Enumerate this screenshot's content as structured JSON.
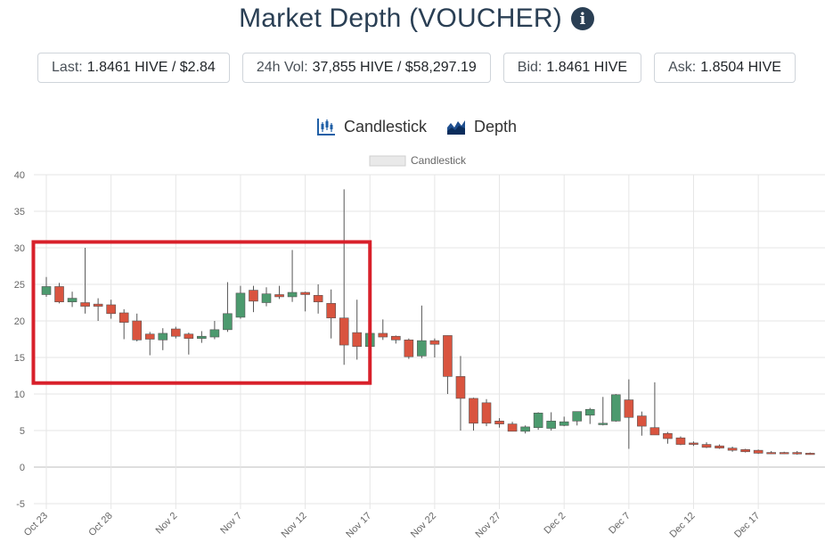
{
  "header": {
    "title": "Market Depth (VOUCHER)",
    "info_icon": "info-icon"
  },
  "stats": [
    {
      "label": "Last:",
      "value": "1.8461 HIVE / $2.84"
    },
    {
      "label": "24h Vol:",
      "value": "37,855 HIVE / $58,297.19"
    },
    {
      "label": "Bid:",
      "value": "1.8461 HIVE"
    },
    {
      "label": "Ask:",
      "value": "1.8504 HIVE"
    }
  ],
  "chart_tabs": [
    {
      "label": "Candlestick",
      "icon": "candlestick-icon"
    },
    {
      "label": "Depth",
      "icon": "depth-chart-icon"
    }
  ],
  "colors": {
    "title": "#2a3f54",
    "up": "#4c9a6e",
    "down": "#d9543f",
    "wick": "#555555",
    "highlight": "#d8202a",
    "grid": "#e6e6e6"
  },
  "chart_data": {
    "type": "candlestick",
    "legend": "Candlestick",
    "ylim": [
      -5,
      40
    ],
    "yticks": [
      -5,
      0,
      5,
      10,
      15,
      20,
      25,
      30,
      35,
      40
    ],
    "xticks": [
      "Oct 23",
      "Oct 28",
      "Nov 2",
      "Nov 7",
      "Nov 12",
      "Nov 17",
      "Nov 22",
      "Nov 27",
      "Dec 2",
      "Dec 7",
      "Dec 12",
      "Dec 17"
    ],
    "xtick_every": 5,
    "grid": true,
    "highlight_region": {
      "day_start": -1,
      "day_end": 25,
      "y_low": 11.5,
      "y_high": 30.8
    },
    "candles": [
      {
        "day": 0,
        "open": 23.6,
        "high": 26.0,
        "low": 23.3,
        "close": 24.7
      },
      {
        "day": 1,
        "open": 24.7,
        "high": 25.2,
        "low": 22.4,
        "close": 22.6
      },
      {
        "day": 2,
        "open": 22.6,
        "high": 24.0,
        "low": 21.9,
        "close": 23.1
      },
      {
        "day": 3,
        "open": 22.5,
        "high": 30.0,
        "low": 21.0,
        "close": 22.0
      },
      {
        "day": 4,
        "open": 22.3,
        "high": 23.1,
        "low": 20.0,
        "close": 22.0
      },
      {
        "day": 5,
        "open": 22.2,
        "high": 22.9,
        "low": 20.3,
        "close": 21.0
      },
      {
        "day": 6,
        "open": 21.1,
        "high": 21.6,
        "low": 17.5,
        "close": 19.8
      },
      {
        "day": 7,
        "open": 20.0,
        "high": 21.0,
        "low": 17.2,
        "close": 17.4
      },
      {
        "day": 8,
        "open": 18.2,
        "high": 18.5,
        "low": 15.3,
        "close": 17.5
      },
      {
        "day": 9,
        "open": 17.4,
        "high": 19.0,
        "low": 16.0,
        "close": 18.3
      },
      {
        "day": 10,
        "open": 18.9,
        "high": 19.2,
        "low": 17.6,
        "close": 17.9
      },
      {
        "day": 11,
        "open": 18.2,
        "high": 18.4,
        "low": 15.4,
        "close": 17.6
      },
      {
        "day": 12,
        "open": 17.6,
        "high": 18.6,
        "low": 17.0,
        "close": 17.9
      },
      {
        "day": 13,
        "open": 17.8,
        "high": 20.0,
        "low": 17.5,
        "close": 18.8
      },
      {
        "day": 14,
        "open": 18.8,
        "high": 25.3,
        "low": 18.5,
        "close": 21.0
      },
      {
        "day": 15,
        "open": 20.5,
        "high": 24.8,
        "low": 20.3,
        "close": 23.8
      },
      {
        "day": 16,
        "open": 24.2,
        "high": 24.8,
        "low": 21.2,
        "close": 22.7
      },
      {
        "day": 17,
        "open": 22.5,
        "high": 24.6,
        "low": 22.0,
        "close": 23.7
      },
      {
        "day": 18,
        "open": 23.6,
        "high": 24.8,
        "low": 23.0,
        "close": 23.3
      },
      {
        "day": 19,
        "open": 23.3,
        "high": 29.7,
        "low": 22.6,
        "close": 23.9
      },
      {
        "day": 20,
        "open": 23.9,
        "high": 24.0,
        "low": 21.3,
        "close": 23.6
      },
      {
        "day": 21,
        "open": 23.5,
        "high": 25.0,
        "low": 21.0,
        "close": 22.6
      },
      {
        "day": 22,
        "open": 22.4,
        "high": 24.3,
        "low": 17.6,
        "close": 20.4
      },
      {
        "day": 23,
        "open": 20.4,
        "high": 38.0,
        "low": 14.0,
        "close": 16.7
      },
      {
        "day": 24,
        "open": 18.4,
        "high": 22.9,
        "low": 14.7,
        "close": 16.5
      },
      {
        "day": 25,
        "open": 16.5,
        "high": 18.5,
        "low": 13.8,
        "close": 18.3
      },
      {
        "day": 26,
        "open": 18.3,
        "high": 20.2,
        "low": 17.4,
        "close": 17.8
      },
      {
        "day": 27,
        "open": 17.9,
        "high": 18.0,
        "low": 16.9,
        "close": 17.4
      },
      {
        "day": 28,
        "open": 17.4,
        "high": 17.6,
        "low": 14.8,
        "close": 15.1
      },
      {
        "day": 29,
        "open": 15.2,
        "high": 22.1,
        "low": 14.9,
        "close": 17.3
      },
      {
        "day": 30,
        "open": 17.3,
        "high": 17.6,
        "low": 15.0,
        "close": 16.8
      },
      {
        "day": 31,
        "open": 18.0,
        "high": 18.0,
        "low": 10.0,
        "close": 12.4
      },
      {
        "day": 32,
        "open": 12.4,
        "high": 15.2,
        "low": 5.0,
        "close": 9.4
      },
      {
        "day": 33,
        "open": 9.4,
        "high": 9.5,
        "low": 5.0,
        "close": 6.0
      },
      {
        "day": 34,
        "open": 8.8,
        "high": 9.3,
        "low": 5.6,
        "close": 6.0
      },
      {
        "day": 35,
        "open": 6.3,
        "high": 6.7,
        "low": 5.4,
        "close": 5.9
      },
      {
        "day": 36,
        "open": 5.9,
        "high": 6.2,
        "low": 4.9,
        "close": 4.9
      },
      {
        "day": 37,
        "open": 4.9,
        "high": 5.7,
        "low": 4.6,
        "close": 5.5
      },
      {
        "day": 38,
        "open": 5.4,
        "high": 7.5,
        "low": 5.1,
        "close": 7.4
      },
      {
        "day": 39,
        "open": 5.3,
        "high": 7.5,
        "low": 5.0,
        "close": 6.3
      },
      {
        "day": 40,
        "open": 5.7,
        "high": 6.9,
        "low": 5.6,
        "close": 6.2
      },
      {
        "day": 41,
        "open": 6.3,
        "high": 7.6,
        "low": 5.7,
        "close": 7.6
      },
      {
        "day": 42,
        "open": 7.1,
        "high": 8.1,
        "low": 5.9,
        "close": 7.9
      },
      {
        "day": 43,
        "open": 5.8,
        "high": 9.6,
        "low": 5.7,
        "close": 6.0
      },
      {
        "day": 44,
        "open": 6.3,
        "high": 10.0,
        "low": 6.2,
        "close": 9.9
      },
      {
        "day": 45,
        "open": 9.2,
        "high": 12.0,
        "low": 2.5,
        "close": 6.8
      },
      {
        "day": 46,
        "open": 7.0,
        "high": 7.6,
        "low": 4.3,
        "close": 5.6
      },
      {
        "day": 47,
        "open": 5.4,
        "high": 11.6,
        "low": 4.4,
        "close": 4.4
      },
      {
        "day": 48,
        "open": 4.6,
        "high": 4.8,
        "low": 3.2,
        "close": 3.9
      },
      {
        "day": 49,
        "open": 4.0,
        "high": 4.2,
        "low": 3.0,
        "close": 3.1
      },
      {
        "day": 50,
        "open": 3.3,
        "high": 3.5,
        "low": 2.9,
        "close": 3.1
      },
      {
        "day": 51,
        "open": 3.1,
        "high": 3.4,
        "low": 2.6,
        "close": 2.7
      },
      {
        "day": 52,
        "open": 2.9,
        "high": 3.1,
        "low": 2.5,
        "close": 2.6
      },
      {
        "day": 53,
        "open": 2.6,
        "high": 2.8,
        "low": 2.1,
        "close": 2.3
      },
      {
        "day": 54,
        "open": 2.4,
        "high": 2.5,
        "low": 2.0,
        "close": 2.1
      },
      {
        "day": 55,
        "open": 2.3,
        "high": 2.4,
        "low": 1.8,
        "close": 1.9
      },
      {
        "day": 56,
        "open": 2.0,
        "high": 2.2,
        "low": 1.8,
        "close": 1.9
      },
      {
        "day": 57,
        "open": 2.0,
        "high": 2.1,
        "low": 1.8,
        "close": 1.9
      },
      {
        "day": 58,
        "open": 2.0,
        "high": 2.2,
        "low": 1.7,
        "close": 1.8
      },
      {
        "day": 59,
        "open": 1.9,
        "high": 2.0,
        "low": 1.7,
        "close": 1.8
      }
    ]
  }
}
